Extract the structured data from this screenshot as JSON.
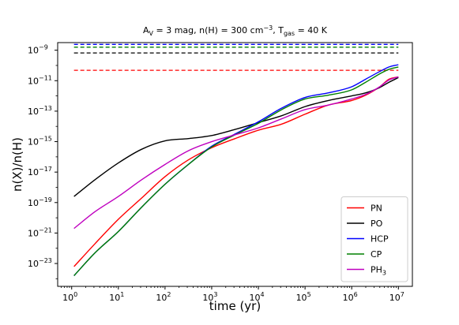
{
  "chart_data": {
    "type": "line",
    "title": {
      "parts": [
        {
          "text": "A",
          "style": "normal"
        },
        {
          "text": "V",
          "style": "sub"
        },
        {
          "text": " = 3 mag,    n(H) = 300 cm",
          "style": "normal"
        },
        {
          "text": "−3",
          "style": "sup"
        },
        {
          "text": ",    T",
          "style": "normal"
        },
        {
          "text": "gas",
          "style": "sub"
        },
        {
          "text": " = 40 K",
          "style": "normal"
        }
      ]
    },
    "xlabel": "time (yr)",
    "ylabel": "n(X)/n(H)",
    "x_scale": "log",
    "y_scale": "log",
    "xlim_log10": [
      -0.3,
      7.3
    ],
    "ylim_log10": [
      -24.5,
      -8.5
    ],
    "x_ticks": [
      {
        "log10": 0,
        "base": "10",
        "exp": "0"
      },
      {
        "log10": 1,
        "base": "10",
        "exp": "1"
      },
      {
        "log10": 2,
        "base": "10",
        "exp": "2"
      },
      {
        "log10": 3,
        "base": "10",
        "exp": "3"
      },
      {
        "log10": 4,
        "base": "10",
        "exp": "4"
      },
      {
        "log10": 5,
        "base": "10",
        "exp": "5"
      },
      {
        "log10": 6,
        "base": "10",
        "exp": "6"
      },
      {
        "log10": 7,
        "base": "10",
        "exp": "7"
      }
    ],
    "y_ticks": [
      {
        "log10": -9,
        "base": "10",
        "exp": "−9"
      },
      {
        "log10": -11,
        "base": "10",
        "exp": "−11"
      },
      {
        "log10": -13,
        "base": "10",
        "exp": "−13"
      },
      {
        "log10": -15,
        "base": "10",
        "exp": "−15"
      },
      {
        "log10": -17,
        "base": "10",
        "exp": "−17"
      },
      {
        "log10": -19,
        "base": "10",
        "exp": "−19"
      },
      {
        "log10": -21,
        "base": "10",
        "exp": "−21"
      },
      {
        "log10": -23,
        "base": "10",
        "exp": "−23"
      }
    ],
    "grid": false,
    "legend_position": "lower-right",
    "series": [
      {
        "name": "PN",
        "color": "#ff0000",
        "log10_time": [
          0.05,
          0.5,
          1,
          1.5,
          2,
          2.5,
          3,
          3.5,
          4,
          4.5,
          5,
          5.5,
          6,
          6.3,
          6.6,
          6.8,
          7.0
        ],
        "log10_abundance": [
          -23.2,
          -21.7,
          -20.1,
          -18.7,
          -17.3,
          -16.2,
          -15.4,
          -14.8,
          -14.25,
          -13.85,
          -13.2,
          -12.6,
          -12.3,
          -11.95,
          -11.4,
          -10.9,
          -10.75
        ]
      },
      {
        "name": "PO",
        "color": "#000000",
        "log10_time": [
          0.05,
          0.5,
          1,
          1.5,
          2,
          2.5,
          3,
          3.5,
          4,
          4.5,
          5,
          5.5,
          6,
          6.3,
          6.6,
          6.8,
          7.0
        ],
        "log10_abundance": [
          -18.6,
          -17.5,
          -16.4,
          -15.5,
          -14.95,
          -14.8,
          -14.6,
          -14.2,
          -13.75,
          -13.3,
          -12.7,
          -12.3,
          -12.0,
          -11.8,
          -11.45,
          -11.1,
          -10.8
        ]
      },
      {
        "name": "HCP",
        "color": "#0000ff",
        "log10_time": [
          0.05,
          0.5,
          1,
          1.5,
          2,
          2.5,
          3,
          3.5,
          4,
          4.5,
          5,
          5.5,
          6,
          6.3,
          6.6,
          6.8,
          7.0
        ],
        "log10_abundance": [
          -23.8,
          -22.3,
          -20.9,
          -19.3,
          -17.8,
          -16.5,
          -15.3,
          -14.5,
          -13.7,
          -12.8,
          -12.1,
          -11.8,
          -11.4,
          -10.9,
          -10.4,
          -10.1,
          -9.95
        ]
      },
      {
        "name": "CP",
        "color": "#008000",
        "log10_time": [
          0.05,
          0.5,
          1,
          1.5,
          2,
          2.5,
          3,
          3.5,
          4,
          4.5,
          5,
          5.5,
          6,
          6.3,
          6.6,
          6.8,
          7.0
        ],
        "log10_abundance": [
          -23.8,
          -22.3,
          -20.9,
          -19.3,
          -17.8,
          -16.5,
          -15.35,
          -14.55,
          -13.8,
          -12.9,
          -12.2,
          -11.95,
          -11.6,
          -11.1,
          -10.55,
          -10.25,
          -10.1
        ]
      },
      {
        "name": "PH3",
        "display_name": {
          "base": "PH",
          "sub": "3"
        },
        "color": "#bf00bf",
        "log10_time": [
          0.05,
          0.5,
          1,
          1.5,
          2,
          2.5,
          3,
          3.5,
          4,
          4.5,
          5,
          5.5,
          6,
          6.3,
          6.6,
          6.8,
          7.0
        ],
        "log10_abundance": [
          -20.7,
          -19.6,
          -18.6,
          -17.5,
          -16.5,
          -15.6,
          -15.0,
          -14.55,
          -14.1,
          -13.5,
          -12.9,
          -12.6,
          -12.2,
          -11.9,
          -11.4,
          -10.95,
          -10.75
        ]
      }
    ],
    "reference_lines": [
      {
        "color": "#0000ff",
        "style": "dashed",
        "log10_abundance": -8.62
      },
      {
        "color": "#008000",
        "style": "dashed",
        "log10_abundance": -8.8
      },
      {
        "color": "#000000",
        "style": "dashed",
        "log10_abundance": -9.18
      },
      {
        "color": "#ff0000",
        "style": "dashed",
        "log10_abundance": -10.32
      }
    ]
  }
}
